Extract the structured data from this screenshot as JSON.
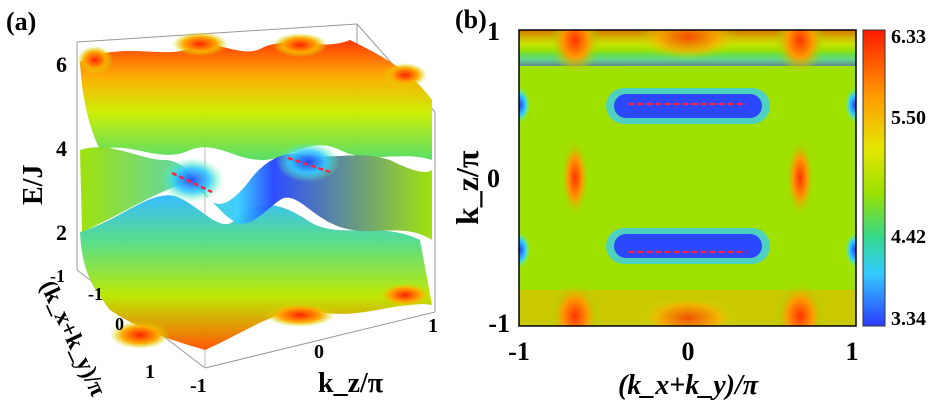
{
  "figure": {
    "panel_a_label": "(a)",
    "panel_b_label": "(b)"
  },
  "chart_data": [
    {
      "type": "surface3d",
      "panel": "(a)",
      "zlabel": "E/J",
      "xlabel": "k_z/π",
      "ylabel": "(k_x+k_y)/π",
      "z_ticks": [
        "6",
        "4",
        "2",
        "-1"
      ],
      "x_ticks": [
        "1",
        "0",
        "-1"
      ],
      "y_ticks": [
        "-1",
        "0",
        "1"
      ],
      "xlim": [
        -1,
        1
      ],
      "ylim": [
        -1,
        1
      ],
      "zlim": [
        -1,
        6.33
      ],
      "bands": 2,
      "nodal_lines": [
        {
          "kz": 0.5,
          "kxy": [
            -0.35,
            0.35
          ],
          "energy": 3.34
        },
        {
          "kz": -0.5,
          "kxy": [
            -0.35,
            0.35
          ],
          "energy": 3.34
        }
      ],
      "colormap": "jet"
    },
    {
      "type": "heatmap",
      "panel": "(b)",
      "xlabel": "(k_x+k_y)/π",
      "ylabel": "k_z/π",
      "xlim": [
        -1,
        1
      ],
      "ylim": [
        -1,
        1
      ],
      "x_ticks": [
        "-1",
        "0",
        "1"
      ],
      "y_ticks": [
        "1",
        "0",
        "-1"
      ],
      "colorbar": {
        "min": 3.34,
        "max": 6.33,
        "ticks": [
          "6.33",
          "5.50",
          "4.42",
          "3.34"
        ]
      },
      "nodal_lines": [
        {
          "kz": 0.5,
          "kxy": [
            -0.35,
            0.35
          ],
          "energy": 3.34
        },
        {
          "kz": -0.5,
          "kxy": [
            -0.35,
            0.35
          ],
          "energy": 3.34
        }
      ],
      "colormap": "jet"
    }
  ]
}
